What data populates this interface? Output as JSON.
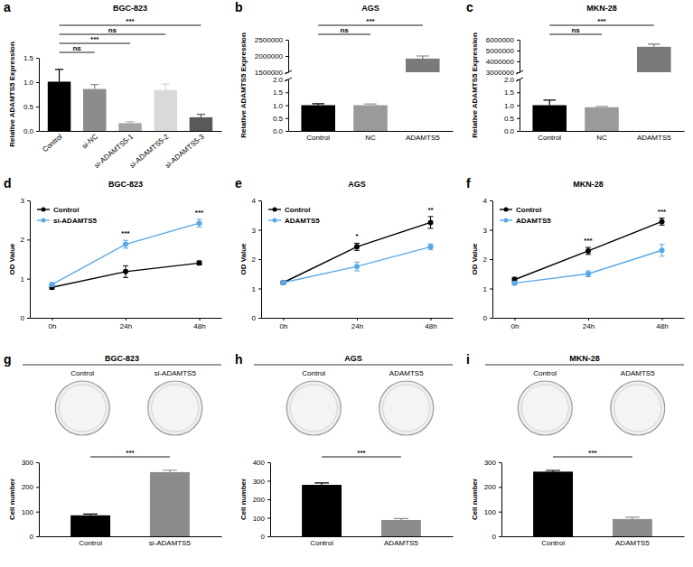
{
  "chart_data": [
    {
      "label": "a",
      "type": "bar",
      "title": "BGC-823",
      "y_label": "Relative ADAMTS5 Expression",
      "categories": [
        "Control",
        "si-NC",
        "si-ADAMTS5-1",
        "si-ADAMTS5-2",
        "si-ADAMTS5-3"
      ],
      "values": [
        1.01,
        0.86,
        0.16,
        0.84,
        0.28
      ],
      "errors": [
        0.25,
        0.09,
        0.03,
        0.12,
        0.06
      ],
      "colors": [
        "#000000",
        "#8c8c8c",
        "#a6a6a6",
        "#d9d9d9",
        "#595959"
      ],
      "ylim": [
        0,
        1.5
      ],
      "yticks": [
        {
          "value": 0,
          "label": "0.0"
        },
        {
          "value": 0.5,
          "label": "0.5"
        },
        {
          "value": 1,
          "label": "1.0"
        },
        {
          "value": 1.5,
          "label": "1.5"
        }
      ],
      "annotations": [
        {
          "text": "ns",
          "categories": [
            "Control",
            "si-NC"
          ]
        },
        {
          "text": "***",
          "categories": [
            "Control",
            "si-ADAMTS5-1"
          ]
        },
        {
          "text": "ns",
          "categories": [
            "Control",
            "si-ADAMTS5-2"
          ]
        },
        {
          "text": "***",
          "categories": [
            "Control",
            "si-ADAMTS5-3"
          ]
        }
      ]
    },
    {
      "label": "b",
      "type": "bar",
      "title": "AGS",
      "y_label": "Relative ADAMTS5 Expression",
      "categories": [
        "Control",
        "NC",
        "ADAMTS5"
      ],
      "values": [
        1.0,
        1.0,
        1920000
      ],
      "errors": [
        0.06,
        0.05,
        80000
      ],
      "colors": [
        "#000000",
        "#9a9a9a",
        "#7a7a7a"
      ],
      "ylim": [
        0,
        2500000
      ],
      "ybreak": [
        2,
        1500000
      ],
      "yticks": [
        {
          "value": 0,
          "label": "0.0"
        },
        {
          "value": 0.5,
          "label": "0.5"
        },
        {
          "value": 1,
          "label": "1.0"
        },
        {
          "value": 1.5,
          "label": "1.5"
        },
        {
          "value": 2,
          "label": "2.0"
        },
        1500000,
        2000000,
        2500000
      ],
      "annotations": [
        {
          "text": "ns",
          "categories": [
            "Control",
            "NC"
          ]
        },
        {
          "text": "***",
          "categories": [
            "Control",
            "ADAMTS5"
          ]
        }
      ]
    },
    {
      "label": "c",
      "type": "bar",
      "title": "MKN-28",
      "y_label": "Relative ADAMTS5 Expression",
      "categories": [
        "Control",
        "NC",
        "ADAMTS5"
      ],
      "values": [
        1.0,
        0.92,
        5350000
      ],
      "errors": [
        0.2,
        0.03,
        250000
      ],
      "colors": [
        "#000000",
        "#9a9a9a",
        "#7a7a7a"
      ],
      "ylim": [
        0,
        6000000
      ],
      "ybreak": [
        2,
        3000000
      ],
      "yticks": [
        {
          "value": 0,
          "label": "0.0"
        },
        {
          "value": 0.5,
          "label": "0.5"
        },
        {
          "value": 1,
          "label": "1.0"
        },
        {
          "value": 1.5,
          "label": "1.5"
        },
        {
          "value": 2,
          "label": "2.0"
        },
        3000000,
        4000000,
        5000000,
        6000000
      ],
      "annotations": [
        {
          "text": "ns",
          "categories": [
            "Control",
            "NC"
          ]
        },
        {
          "text": "***",
          "categories": [
            "Control",
            "ADAMTS5"
          ]
        }
      ]
    },
    {
      "label": "d",
      "type": "line",
      "title": "BGC-823",
      "y_label": "OD Value",
      "categories": [
        "0h",
        "24h",
        "48h"
      ],
      "series": [
        {
          "name": "Control",
          "color": "#000000",
          "marker": "circle",
          "values": [
            0.78,
            1.18,
            1.4
          ],
          "errors": [
            0.05,
            0.15,
            0.05
          ]
        },
        {
          "name": "si-ADAMTS5",
          "color": "#5aa9e6",
          "marker": "circle",
          "values": [
            0.85,
            1.88,
            2.42
          ],
          "errors": [
            0.05,
            0.1,
            0.1
          ]
        }
      ],
      "ylim": [
        0,
        3
      ],
      "yticks": [
        0,
        1,
        2,
        3
      ],
      "legend": "upper left",
      "annotations": [
        {
          "text": "***",
          "x": "24h"
        },
        {
          "text": "***",
          "x": "48h"
        }
      ]
    },
    {
      "label": "e",
      "type": "line",
      "title": "AGS",
      "y_label": "OD Value",
      "categories": [
        "0h",
        "24h",
        "48h"
      ],
      "series": [
        {
          "name": "Control",
          "color": "#000000",
          "marker": "circle",
          "values": [
            1.2,
            2.42,
            3.25
          ],
          "errors": [
            0.05,
            0.12,
            0.2
          ]
        },
        {
          "name": "ADAMTS5",
          "color": "#5aa9e6",
          "marker": "circle",
          "values": [
            1.2,
            1.75,
            2.42
          ],
          "errors": [
            0.05,
            0.15,
            0.1
          ]
        }
      ],
      "ylim": [
        0,
        4
      ],
      "yticks": [
        0,
        1,
        2,
        3,
        4
      ],
      "legend": "upper left",
      "annotations": [
        {
          "text": "*",
          "x": "24h"
        },
        {
          "text": "**",
          "x": "48h"
        }
      ]
    },
    {
      "label": "f",
      "type": "line",
      "title": "MKN-28",
      "y_label": "OD Value",
      "categories": [
        "0h",
        "24h",
        "48h"
      ],
      "series": [
        {
          "name": "Control",
          "color": "#000000",
          "marker": "circle",
          "values": [
            1.3,
            2.28,
            3.28
          ],
          "errors": [
            0.08,
            0.12,
            0.12
          ]
        },
        {
          "name": "ADAMTS5",
          "color": "#5aa9e6",
          "marker": "circle",
          "values": [
            1.18,
            1.5,
            2.3
          ],
          "errors": [
            0.05,
            0.1,
            0.2
          ]
        }
      ],
      "ylim": [
        0,
        4
      ],
      "yticks": [
        0,
        1,
        2,
        3,
        4
      ],
      "legend": "upper left",
      "annotations": [
        {
          "text": "***",
          "x": "24h"
        },
        {
          "text": "***",
          "x": "48h"
        }
      ]
    },
    {
      "label": "g",
      "type": "bar",
      "title": "BGC-823",
      "image_labels": [
        "Control",
        "si-ADAMTS5"
      ],
      "y_label": "Cell number",
      "categories": [
        "Control",
        "si-ADAMTS5"
      ],
      "values": [
        85,
        260
      ],
      "errors": [
        5,
        8
      ],
      "colors": [
        "#000000",
        "#8c8c8c"
      ],
      "ylim": [
        0,
        300
      ],
      "yticks": [
        0,
        100,
        200,
        300
      ],
      "annotations": [
        {
          "text": "***",
          "categories": [
            "Control",
            "si-ADAMTS5"
          ]
        }
      ]
    },
    {
      "label": "h",
      "type": "bar",
      "title": "AGS",
      "image_labels": [
        "Control",
        "ADAMTS5"
      ],
      "y_label": "Cell number",
      "categories": [
        "Control",
        "ADAMTS5"
      ],
      "values": [
        278,
        88
      ],
      "errors": [
        10,
        8
      ],
      "colors": [
        "#000000",
        "#8c8c8c"
      ],
      "ylim": [
        0,
        400
      ],
      "yticks": [
        0,
        100,
        200,
        300,
        400
      ],
      "annotations": [
        {
          "text": "***",
          "categories": [
            "Control",
            "ADAMTS5"
          ]
        }
      ]
    },
    {
      "label": "i",
      "type": "bar",
      "title": "MKN-28",
      "image_labels": [
        "Control",
        "ADAMTS5"
      ],
      "y_label": "Cell number",
      "categories": [
        "Control",
        "ADAMTS5"
      ],
      "values": [
        262,
        70
      ],
      "errors": [
        5,
        7
      ],
      "colors": [
        "#000000",
        "#8c8c8c"
      ],
      "ylim": [
        0,
        300
      ],
      "yticks": [
        0,
        100,
        200,
        300
      ],
      "annotations": [
        {
          "text": "***",
          "categories": [
            "Control",
            "ADAMTS5"
          ]
        }
      ]
    }
  ]
}
